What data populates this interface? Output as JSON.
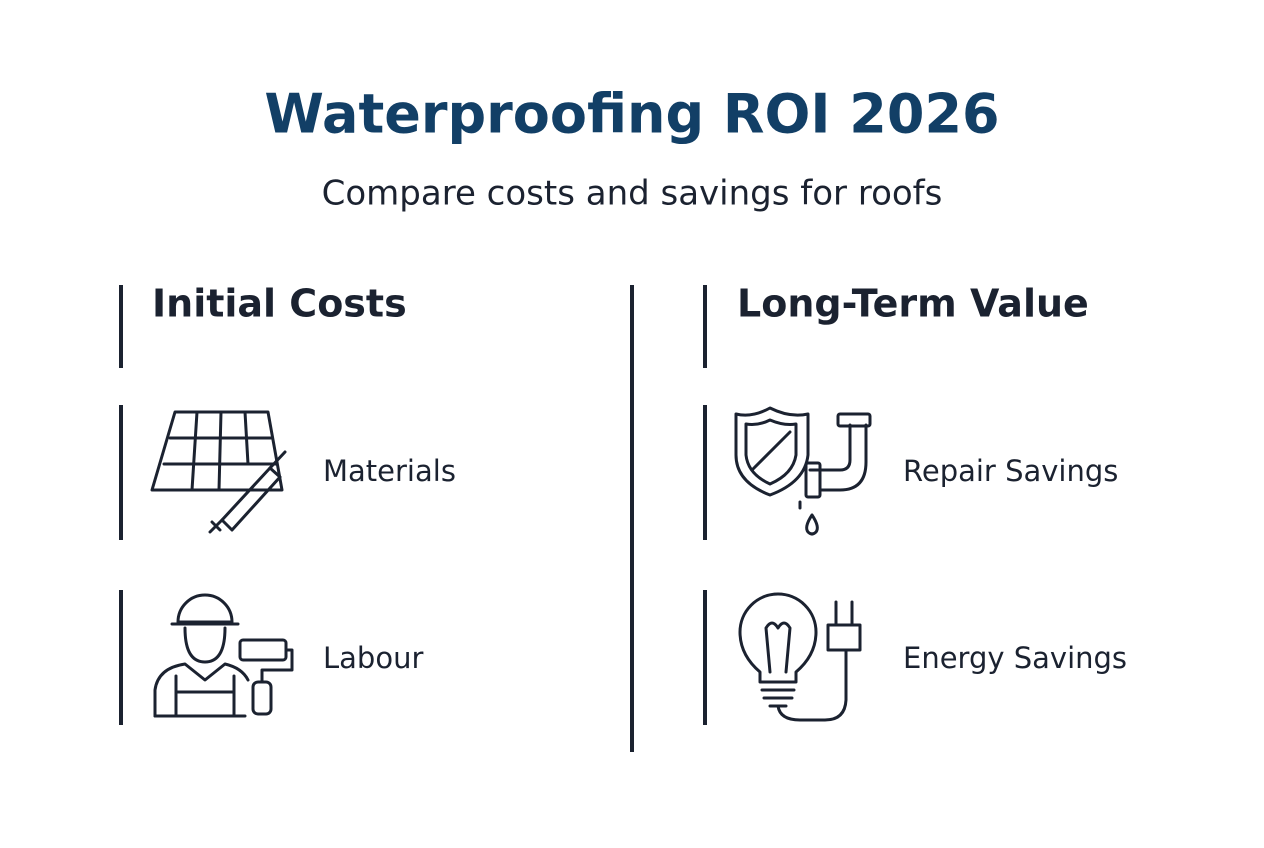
{
  "header": {
    "title": "Waterproofing ROI 2026",
    "subtitle": "Compare costs and savings for roofs"
  },
  "columns": [
    {
      "heading": "Initial Costs",
      "items": [
        {
          "label": "Materials"
        },
        {
          "label": "Labour"
        }
      ]
    },
    {
      "heading": "Long-Term Value",
      "items": [
        {
          "label": "Repair Savings"
        },
        {
          "label": "Energy Savings"
        }
      ]
    }
  ]
}
